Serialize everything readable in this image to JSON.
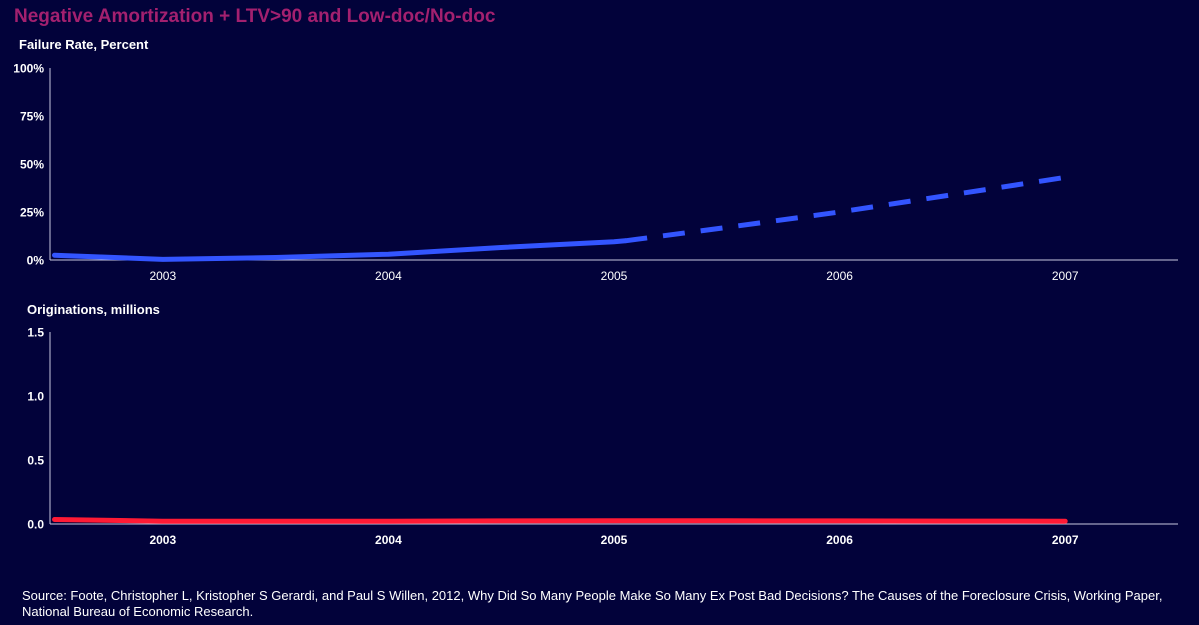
{
  "title": "Negative Amortization + LTV>90 and Low-doc/No-doc",
  "source": "Source: Foote, Christopher L, Kristopher S Gerardi, and Paul S Willen, 2012, Why Did So Many People Make So Many Ex Post Bad Decisions? The Causes of the Foreclosure Crisis, Working Paper, National Bureau of Economic Research.",
  "colors": {
    "background": "#02023a",
    "title": "#a3206f",
    "failure_line": "#3355ff",
    "originations_line": "#ff1a35",
    "axis": "#c8c8e0",
    "text": "#ffffff"
  },
  "chart_data": [
    {
      "type": "line",
      "ylabel": "Failure Rate, Percent",
      "ylim": [
        0,
        100
      ],
      "yticks": [
        "0%",
        "25%",
        "50%",
        "75%",
        "100%"
      ],
      "ytick_values": [
        0,
        25,
        50,
        75,
        100
      ],
      "categories": [
        "2003",
        "2004",
        "2005",
        "2006",
        "2007"
      ],
      "xlim": [
        2002.5,
        2007.5
      ],
      "grid": false,
      "series": [
        {
          "style": "solid",
          "x": [
            2002.52,
            2003,
            2003.5,
            2004,
            2004.5,
            2005,
            2005.05
          ],
          "values": [
            2.5,
            0.3,
            1.3,
            3,
            6.5,
            9.5,
            10
          ]
        },
        {
          "style": "dashed",
          "x": [
            2005.05,
            2005.5,
            2006,
            2006.5,
            2007
          ],
          "values": [
            10,
            17,
            25,
            34,
            43
          ]
        }
      ]
    },
    {
      "type": "line",
      "ylabel": "Originations, millions",
      "ylim": [
        0,
        1.5
      ],
      "yticks": [
        "0.0",
        "0.5",
        "1.0",
        "1.5"
      ],
      "ytick_values": [
        0,
        0.5,
        1.0,
        1.5
      ],
      "categories": [
        "2003",
        "2004",
        "2005",
        "2006",
        "2007"
      ],
      "xlim": [
        2002.5,
        2007.5
      ],
      "grid": false,
      "series": [
        {
          "style": "solid",
          "x": [
            2002.52,
            2003,
            2003.5,
            2004,
            2004.5,
            2005,
            2005.5,
            2006,
            2006.5,
            2007
          ],
          "values": [
            0.035,
            0.022,
            0.021,
            0.022,
            0.024,
            0.026,
            0.025,
            0.024,
            0.023,
            0.022
          ]
        }
      ]
    }
  ]
}
